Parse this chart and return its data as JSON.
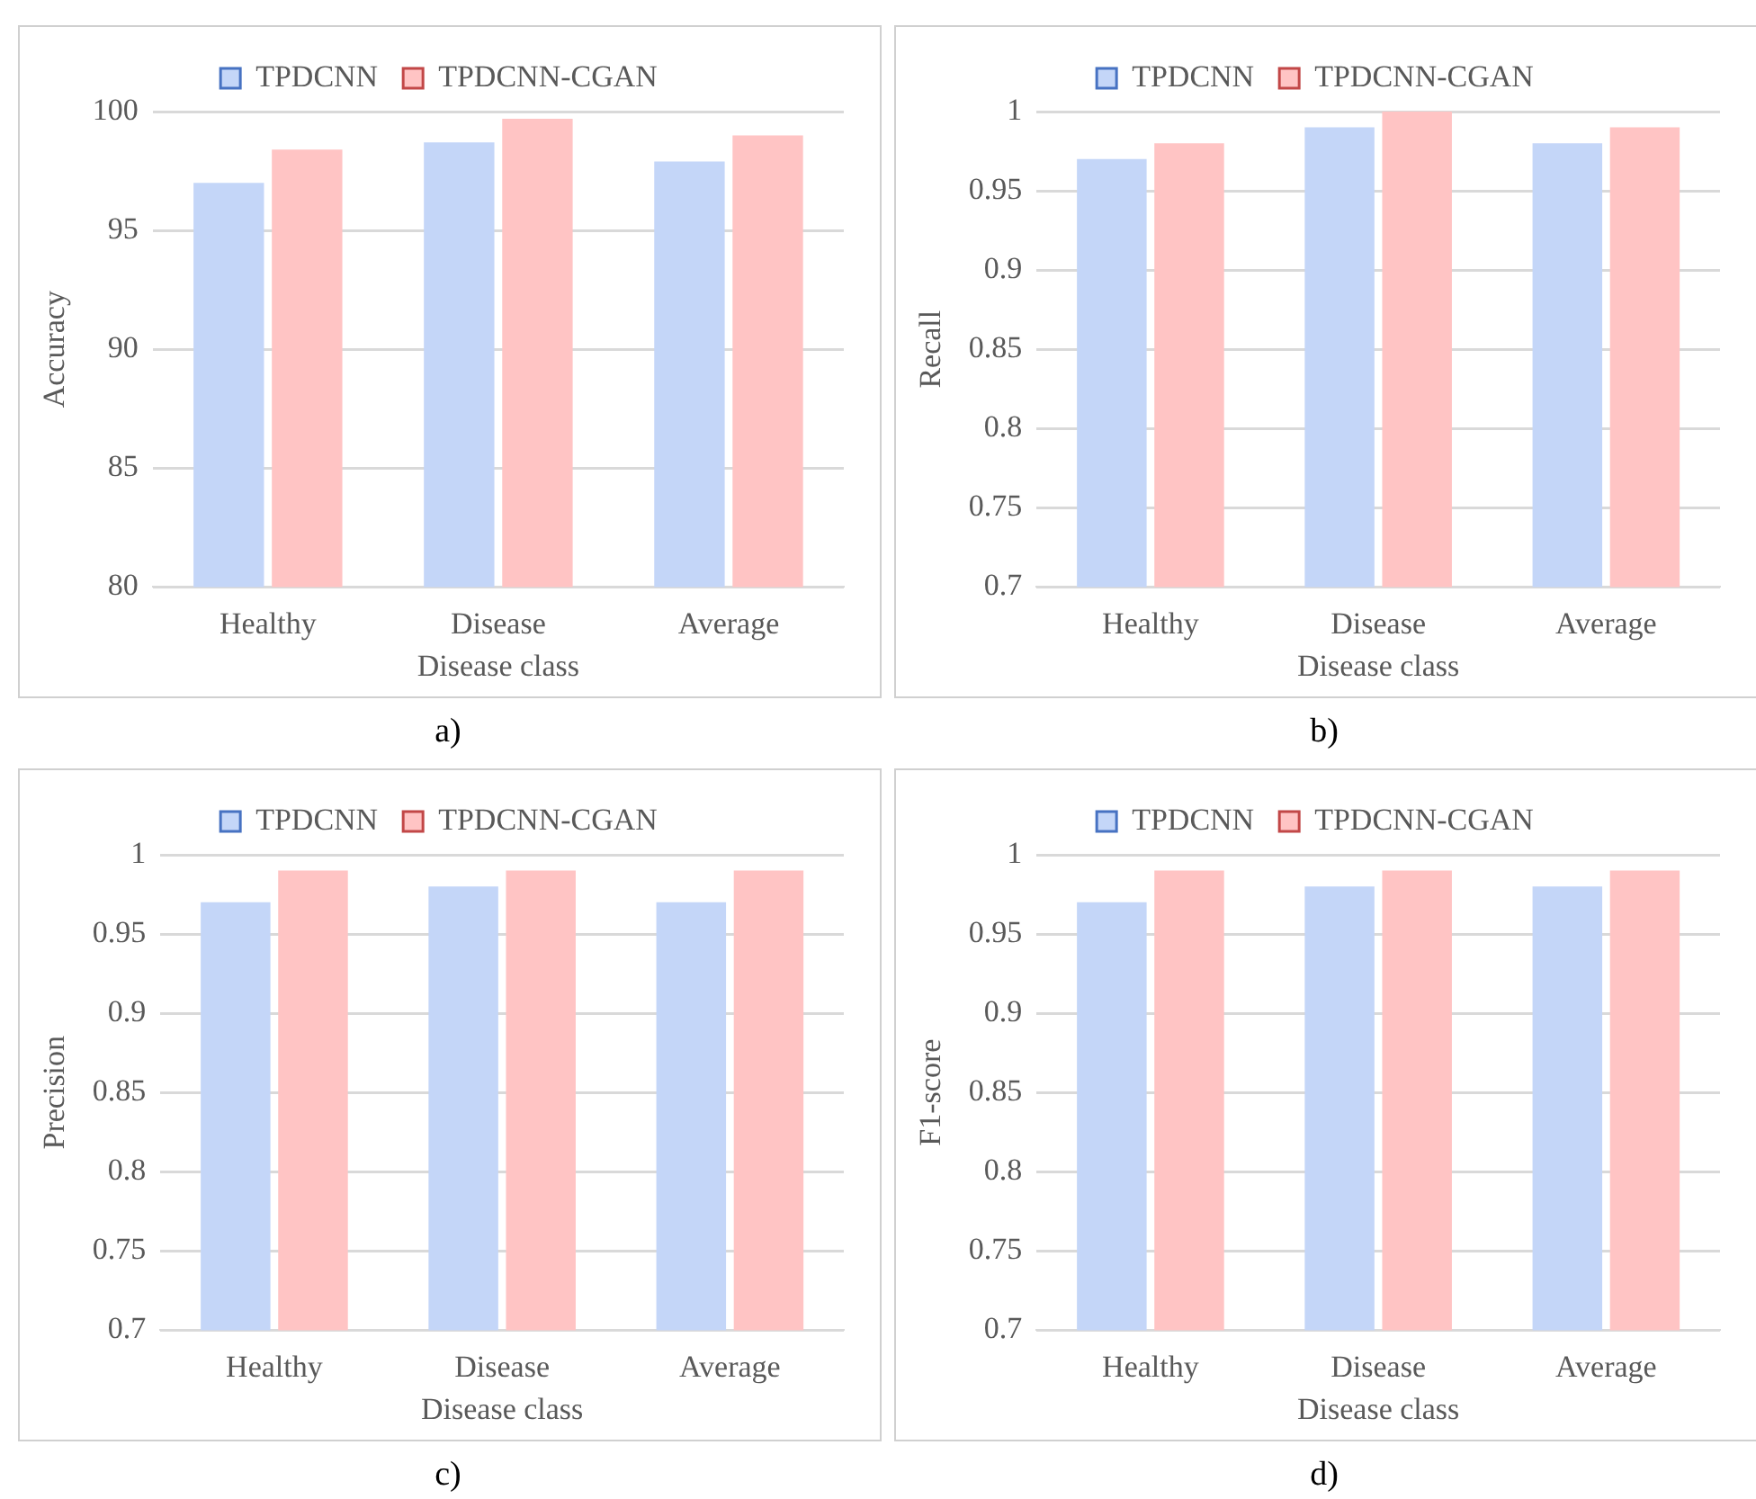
{
  "chart_data": [
    {
      "type": "bar",
      "xlabel": "Disease class",
      "ylabel": "Accuracy",
      "categories": [
        "Healthy",
        "Disease",
        "Average"
      ],
      "series": [
        {
          "name": "TPDCNN",
          "color": "#c4d6f8",
          "values": [
            97.0,
            98.7,
            97.9
          ]
        },
        {
          "name": "TPDCNN-CGAN",
          "color": "#ffc4c4",
          "values": [
            98.4,
            99.7,
            99.0
          ]
        }
      ],
      "ylim": [
        80,
        100
      ],
      "yticks": [
        80,
        85,
        90,
        95,
        100
      ],
      "grid": "y",
      "legend": "top",
      "annotations": [
        "a)"
      ]
    },
    {
      "type": "bar",
      "xlabel": "Disease class",
      "ylabel": "Recall",
      "categories": [
        "Healthy",
        "Disease",
        "Average"
      ],
      "series": [
        {
          "name": "TPDCNN",
          "color": "#c4d6f8",
          "values": [
            0.97,
            0.99,
            0.98
          ]
        },
        {
          "name": "TPDCNN-CGAN",
          "color": "#ffc4c4",
          "values": [
            0.98,
            1.0,
            0.99
          ]
        }
      ],
      "ylim": [
        0.7,
        1
      ],
      "yticks": [
        0.7,
        0.75,
        0.8,
        0.85,
        0.9,
        0.95,
        1
      ],
      "grid": "y",
      "legend": "top",
      "annotations": [
        "b)"
      ]
    },
    {
      "type": "bar",
      "xlabel": "Disease class",
      "ylabel": "Precision",
      "categories": [
        "Healthy",
        "Disease",
        "Average"
      ],
      "series": [
        {
          "name": "TPDCNN",
          "color": "#c4d6f8",
          "values": [
            0.97,
            0.98,
            0.97
          ]
        },
        {
          "name": "TPDCNN-CGAN",
          "color": "#ffc4c4",
          "values": [
            0.99,
            0.99,
            0.99
          ]
        }
      ],
      "ylim": [
        0.7,
        1
      ],
      "yticks": [
        0.7,
        0.75,
        0.8,
        0.85,
        0.9,
        0.95,
        1
      ],
      "grid": "y",
      "legend": "top",
      "annotations": [
        "c)"
      ]
    },
    {
      "type": "bar",
      "xlabel": "Disease class",
      "ylabel": "F1-score",
      "categories": [
        "Healthy",
        "Disease",
        "Average"
      ],
      "series": [
        {
          "name": "TPDCNN",
          "color": "#c4d6f8",
          "values": [
            0.97,
            0.98,
            0.98
          ]
        },
        {
          "name": "TPDCNN-CGAN",
          "color": "#ffc4c4",
          "values": [
            0.99,
            0.99,
            0.99
          ]
        }
      ],
      "ylim": [
        0.7,
        1
      ],
      "yticks": [
        0.7,
        0.75,
        0.8,
        0.85,
        0.9,
        0.95,
        1
      ],
      "grid": "y",
      "legend": "top",
      "annotations": [
        "d)"
      ]
    }
  ]
}
